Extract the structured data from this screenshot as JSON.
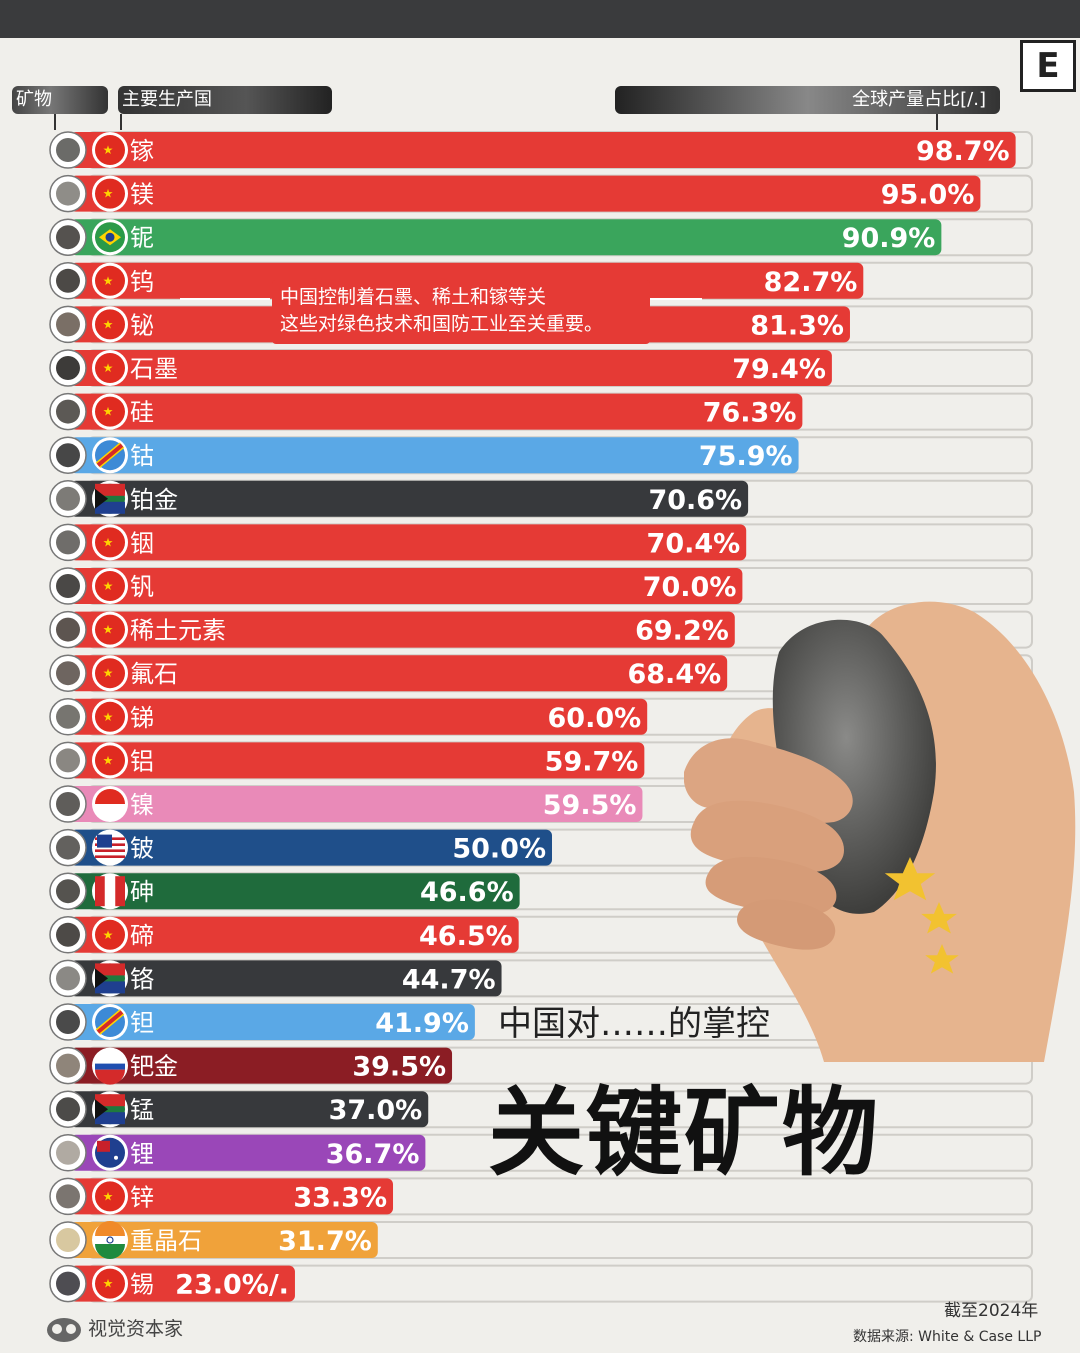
{
  "header": {
    "mineral_label": "矿物",
    "producer_label": "主要生产国",
    "share_label": "全球产量占比[/.]"
  },
  "logo_letter": "E",
  "note": {
    "line1": "中国控制着石墨、稀土和镓等关",
    "line2": "这些对绿色技术和国防工业至关重要。"
  },
  "subtitle": "中国对……的掌控",
  "title": "关键矿物",
  "brand": "视觉资本家",
  "as_of": "截至2024年",
  "source": "数据来源: White & Case LLP",
  "colors": {
    "china_red": "#e53a35",
    "brazil_green": "#3aa55c",
    "congo_blue": "#5aa8e6",
    "south_africa_dark": "#37393c",
    "indonesia_pink": "#e98ab8",
    "usa_navy": "#1f4f8a",
    "peru_green": "#1f6b3c",
    "russia_maroon": "#8b1d24",
    "australia_purple": "#9a47b8",
    "india_orange": "#f0a23a"
  },
  "chart_data": {
    "type": "bar",
    "orientation": "horizontal",
    "xlim": [
      0,
      100
    ],
    "value_suffix": "%",
    "categories": [
      "镓",
      "镁",
      "铌",
      "钨",
      "铋",
      "石墨",
      "硅",
      "钴",
      "铂金",
      "铟",
      "钒",
      "稀土元素",
      "氟石",
      "锑",
      "铝",
      "镍",
      "铍",
      "砷",
      "碲",
      "铬",
      "钽",
      "钯金",
      "锰",
      "锂",
      "锌",
      "重晶石",
      "锡"
    ],
    "values": [
      98.7,
      95.0,
      90.9,
      82.7,
      81.3,
      79.4,
      76.3,
      75.9,
      70.6,
      70.4,
      70.0,
      69.2,
      68.4,
      60.0,
      59.7,
      59.5,
      50.0,
      46.6,
      46.5,
      44.7,
      41.9,
      39.5,
      37.0,
      36.7,
      33.3,
      31.7,
      23.0
    ],
    "value_labels": [
      "98.7%",
      "95.0%",
      "90.9%",
      "82.7%",
      "81.3%",
      "79.4%",
      "76.3%",
      "75.9%",
      "70.6%",
      "70.4%",
      "70.0%",
      "69.2%",
      "68.4%",
      "60.0%",
      "59.7%",
      "59.5%",
      "50.0%",
      "46.6%",
      "46.5%",
      "44.7%",
      "41.9%",
      "39.5%",
      "37.0%",
      "36.7%",
      "33.3%",
      "31.7%",
      "23.0%/."
    ],
    "producers": [
      "china",
      "china",
      "brazil",
      "china",
      "china",
      "china",
      "china",
      "congo",
      "south_africa",
      "china",
      "china",
      "china",
      "china",
      "china",
      "china",
      "indonesia",
      "usa",
      "peru",
      "china",
      "south_africa",
      "congo",
      "russia",
      "south_africa",
      "australia",
      "china",
      "india",
      "china"
    ],
    "bar_colors": [
      "#e53a35",
      "#e53a35",
      "#3aa55c",
      "#e53a35",
      "#e53a35",
      "#e53a35",
      "#e53a35",
      "#5aa8e6",
      "#37393c",
      "#e53a35",
      "#e53a35",
      "#e53a35",
      "#e53a35",
      "#e53a35",
      "#e53a35",
      "#e98ab8",
      "#1f4f8a",
      "#1f6b3c",
      "#e53a35",
      "#37393c",
      "#5aa8e6",
      "#8b1d24",
      "#37393c",
      "#9a47b8",
      "#e53a35",
      "#f0a23a",
      "#e53a35"
    ]
  }
}
